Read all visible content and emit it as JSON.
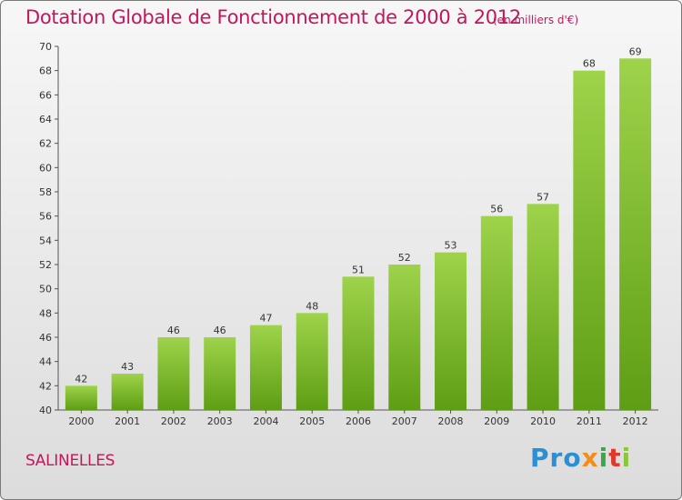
{
  "chart_data": {
    "type": "bar",
    "title": "Dotation Globale de Fonctionnement de 2000 à 2012",
    "subtitle": "(en milliers d'€)",
    "categories": [
      "2000",
      "2001",
      "2002",
      "2003",
      "2004",
      "2005",
      "2006",
      "2007",
      "2008",
      "2009",
      "2010",
      "2011",
      "2012"
    ],
    "values": [
      42,
      43,
      46,
      46,
      47,
      48,
      51,
      52,
      53,
      56,
      57,
      68,
      69
    ],
    "ylim": [
      40,
      70
    ],
    "yticks": [
      40,
      42,
      44,
      46,
      48,
      50,
      52,
      54,
      56,
      58,
      60,
      62,
      64,
      66,
      68,
      70
    ],
    "grid": false,
    "bar_color_top": "#9ed34a",
    "bar_color_bottom": "#5e9e14"
  },
  "footer": {
    "commune": "SALINELLES",
    "logo": [
      "Pro",
      "x",
      "i",
      "t",
      "i"
    ]
  }
}
